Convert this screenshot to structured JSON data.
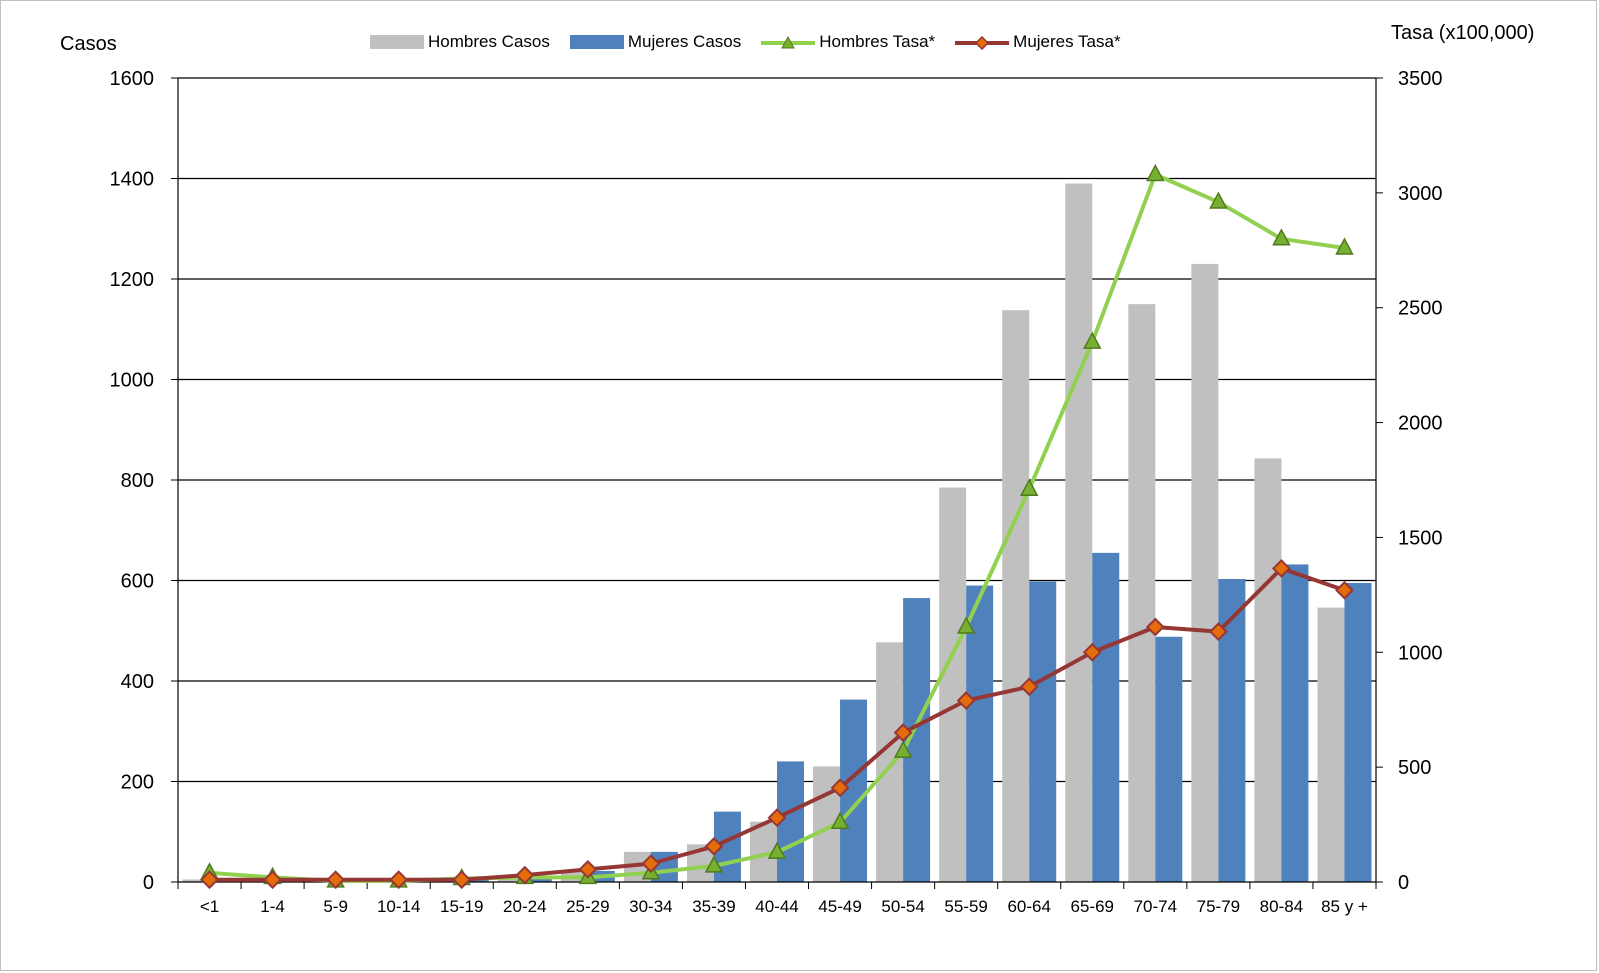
{
  "colors": {
    "hombres_casos": "#c0c0c0",
    "mujeres_casos": "#4f81bd",
    "hombres_tasa": "#92d050",
    "hombres_tasa_marker": "#77b030",
    "mujeres_tasa": "#953735",
    "mujeres_tasa_marker": "#e46c0a",
    "gridline": "#000000"
  },
  "chart_data": {
    "type": "bar",
    "combo": "clustered bar (left axis) with line series (right axis)",
    "title": "",
    "xlabel": "",
    "ylabel": "Casos",
    "y2label": "Tasa (x100,000)",
    "ylim": [
      0,
      1600
    ],
    "y2lim": [
      0,
      3500
    ],
    "yticks": [
      "0",
      "200",
      "400",
      "600",
      "800",
      "1000",
      "1200",
      "1400",
      "1600"
    ],
    "y2ticks": [
      "0",
      "500",
      "1000",
      "1500",
      "2000",
      "2500",
      "3000",
      "3500"
    ],
    "grid": true,
    "legend_position": "top",
    "categories": [
      "<1",
      "1-4",
      "5-9",
      "10-14",
      "15-19",
      "20-24",
      "25-29",
      "30-34",
      "35-39",
      "40-44",
      "45-49",
      "50-54",
      "55-59",
      "60-64",
      "65-69",
      "70-74",
      "75-79",
      "80-84",
      "85 y +"
    ],
    "series": [
      {
        "name": "Hombres Casos",
        "type": "bar",
        "axis": "left",
        "values": [
          5,
          3,
          3,
          4,
          5,
          8,
          20,
          60,
          75,
          120,
          230,
          477,
          785,
          1138,
          1390,
          1150,
          1230,
          843,
          546
        ]
      },
      {
        "name": "Mujeres Casos",
        "type": "bar",
        "axis": "left",
        "values": [
          3,
          2,
          2,
          3,
          5,
          10,
          22,
          60,
          140,
          240,
          363,
          565,
          590,
          598,
          655,
          488,
          603,
          632,
          595
        ]
      },
      {
        "name": "Hombres Tasa*",
        "type": "line",
        "axis": "right",
        "marker": "triangle",
        "values": [
          40,
          20,
          5,
          5,
          15,
          20,
          20,
          40,
          70,
          130,
          260,
          570,
          1110,
          1710,
          2350,
          3080,
          2960,
          2800,
          2760
        ]
      },
      {
        "name": "Mujeres Tasa*",
        "type": "line",
        "axis": "right",
        "marker": "diamond",
        "values": [
          10,
          10,
          10,
          10,
          10,
          30,
          55,
          80,
          155,
          280,
          410,
          650,
          790,
          850,
          1000,
          1110,
          1090,
          1365,
          1270
        ]
      }
    ]
  }
}
